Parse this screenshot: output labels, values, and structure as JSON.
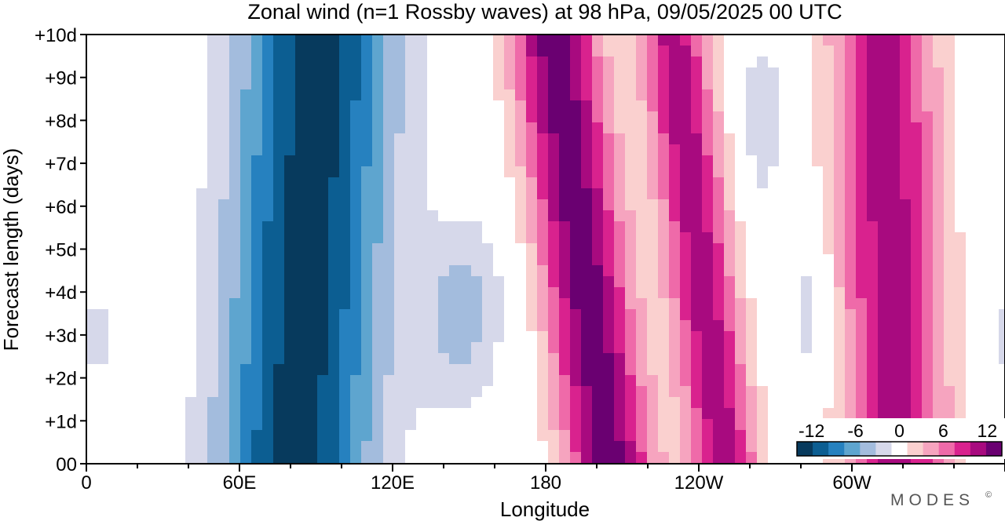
{
  "chart_data": {
    "type": "heatmap",
    "title": "Zonal wind (n=1 Rossby waves) at 98 hPa,  09/05/2025  00 UTC",
    "xlabel": "Longitude",
    "ylabel": "Forecast length (days)",
    "x_ticks": [
      {
        "lon": 0,
        "label": "0"
      },
      {
        "lon": 60,
        "label": "60E"
      },
      {
        "lon": 120,
        "label": "120E"
      },
      {
        "lon": 180,
        "label": "180"
      },
      {
        "lon": 240,
        "label": "120W"
      },
      {
        "lon": 300,
        "label": "60W"
      }
    ],
    "x_range": [
      0,
      360
    ],
    "y_ticks": [
      {
        "day": 0,
        "label": "00"
      },
      {
        "day": 1,
        "label": "+1d"
      },
      {
        "day": 2,
        "label": "+2d"
      },
      {
        "day": 3,
        "label": "+3d"
      },
      {
        "day": 4,
        "label": "+4d"
      },
      {
        "day": 5,
        "label": "+5d"
      },
      {
        "day": 6,
        "label": "+6d"
      },
      {
        "day": 7,
        "label": "+7d"
      },
      {
        "day": 8,
        "label": "+8d"
      },
      {
        "day": 9,
        "label": "+9d"
      },
      {
        "day": 10,
        "label": "+10d"
      }
    ],
    "y_range": [
      0,
      10
    ],
    "colorbar": {
      "levels": [
        -14,
        -12,
        -10,
        -8,
        -6,
        -4,
        -2,
        2,
        4,
        6,
        8,
        10,
        12,
        14
      ],
      "labels": [
        {
          "value": -12,
          "label": "-12"
        },
        {
          "value": -6,
          "label": "-6"
        },
        {
          "value": 0,
          "label": "0"
        },
        {
          "value": 6,
          "label": "6"
        },
        {
          "value": 12,
          "label": "12"
        }
      ],
      "colors": [
        "#073a5d",
        "#0c5e92",
        "#2681bf",
        "#5ea5cf",
        "#a3bcdd",
        "#d6d8ea",
        "#ffffff",
        "#fad0cf",
        "#f6a4bf",
        "#ef6aa9",
        "#d9228e",
        "#a80a7f",
        "#6a0071"
      ]
    },
    "features": [
      {
        "kind": "easterly",
        "lon_center": 90,
        "day_span": [
          0,
          10
        ],
        "min_value": -13
      },
      {
        "kind": "westerly",
        "lon_center": 197,
        "day_span": [
          0,
          10
        ],
        "max_value": 13
      },
      {
        "kind": "westerly",
        "lon_center": 237,
        "day_span": [
          0,
          9
        ],
        "max_value": 12
      },
      {
        "kind": "westerly",
        "lon_center": 315,
        "day_span": [
          0,
          10
        ],
        "max_value": 11
      },
      {
        "kind": "easterly",
        "lon_center": 150,
        "day_span": [
          2,
          5
        ],
        "min_value": -5
      },
      {
        "kind": "easterly",
        "lon_center": 265,
        "day_span": [
          6,
          10
        ],
        "min_value": -4
      },
      {
        "kind": "easterly",
        "lon_center": 284,
        "day_span": [
          2,
          5
        ],
        "min_value": -4
      },
      {
        "kind": "easterly",
        "lon_center": 5,
        "day_span": [
          2,
          4
        ],
        "min_value": -3
      }
    ]
  },
  "brand": "MODES",
  "brand_mark": "©"
}
